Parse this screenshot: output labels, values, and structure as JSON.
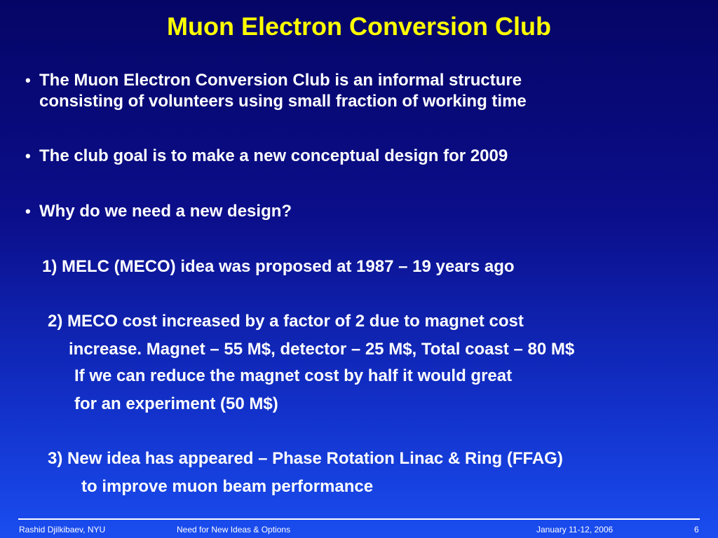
{
  "slide": {
    "title": "Muon Electron Conversion Club",
    "bullet_char": "•",
    "bullets": [
      {
        "lines": [
          "The Muon Electron Conversion Club is an informal structure",
          "consisting of volunteers using small fraction of  working time"
        ]
      },
      {
        "lines": [
          "The club goal is to make a new conceptual design for 2009"
        ]
      },
      {
        "lines": [
          "Why do we need a new design?"
        ]
      }
    ],
    "items": [
      {
        "lines": [
          "1)  MELC (MECO) idea was proposed at 1987 – 19 years ago"
        ]
      },
      {
        "lines": [
          "2) MECO cost increased by a factor of 2 due to magnet cost",
          "increase. Magnet – 55 M$, detector – 25 M$,   Total coast – 80 M$",
          "If we can reduce the magnet cost by half it would great",
          "for an experiment (50 M$)"
        ]
      },
      {
        "lines": [
          "3)  New idea has appeared – Phase Rotation Linac & Ring (FFAG)",
          "to improve muon beam performance"
        ]
      }
    ]
  },
  "footer": {
    "author": "Rashid Djilkibaev, NYU",
    "topic": "Need for New Ideas & Options",
    "date": "January 11-12, 2006",
    "page": "6"
  }
}
